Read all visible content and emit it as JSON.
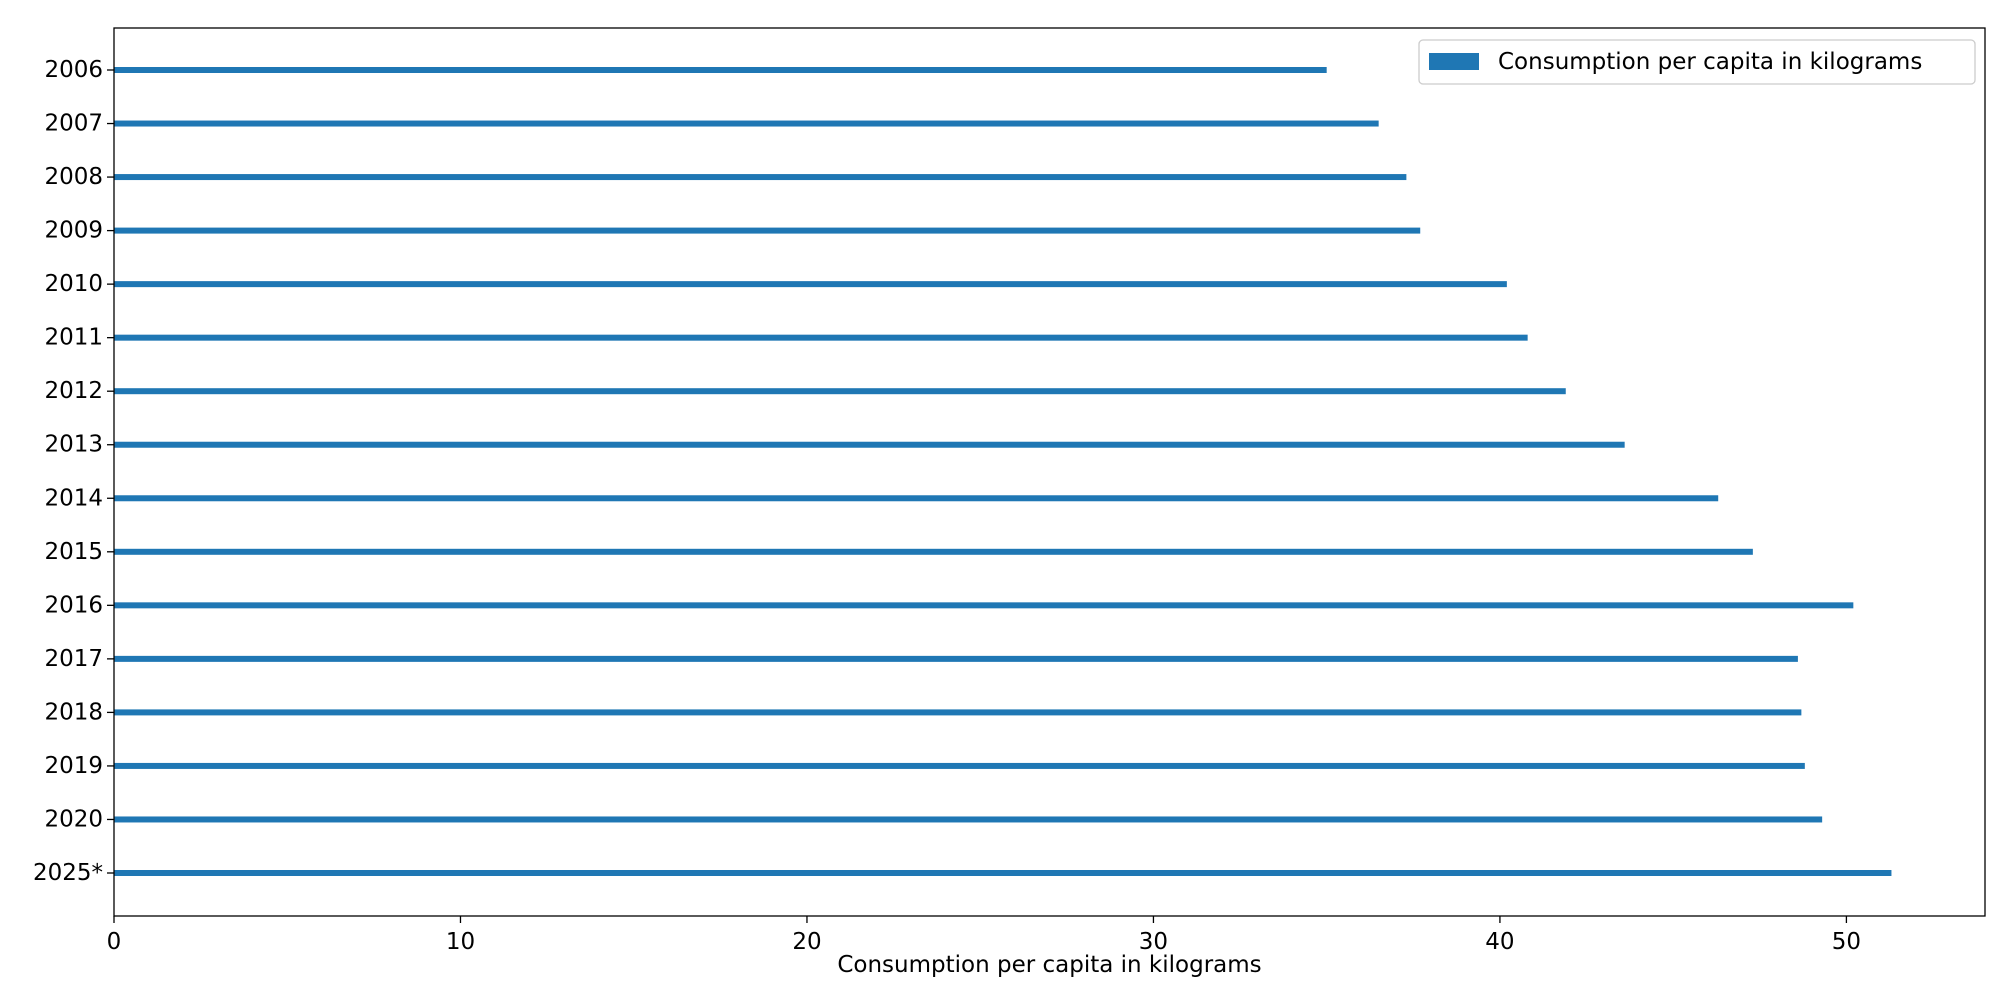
{
  "chart_data": {
    "type": "bar",
    "orientation": "horizontal",
    "categories": [
      "2006",
      "2007",
      "2008",
      "2009",
      "2010",
      "2011",
      "2012",
      "2013",
      "2014",
      "2015",
      "2016",
      "2017",
      "2018",
      "2019",
      "2020",
      "2025*"
    ],
    "series": [
      {
        "name": "Consumption per capita in kilograms",
        "color": "#1f77b4",
        "values": [
          35.0,
          36.5,
          37.3,
          37.7,
          40.2,
          40.8,
          41.9,
          43.6,
          46.3,
          47.3,
          50.2,
          48.6,
          48.7,
          48.8,
          49.3,
          51.3
        ]
      }
    ],
    "xlabel": "Consumption per capita in kilograms",
    "ylabel": "",
    "title": "",
    "xlim": [
      0,
      54
    ],
    "xticks": [
      0,
      10,
      20,
      30,
      40,
      50
    ],
    "grid": false,
    "legend_position": "top-right"
  }
}
